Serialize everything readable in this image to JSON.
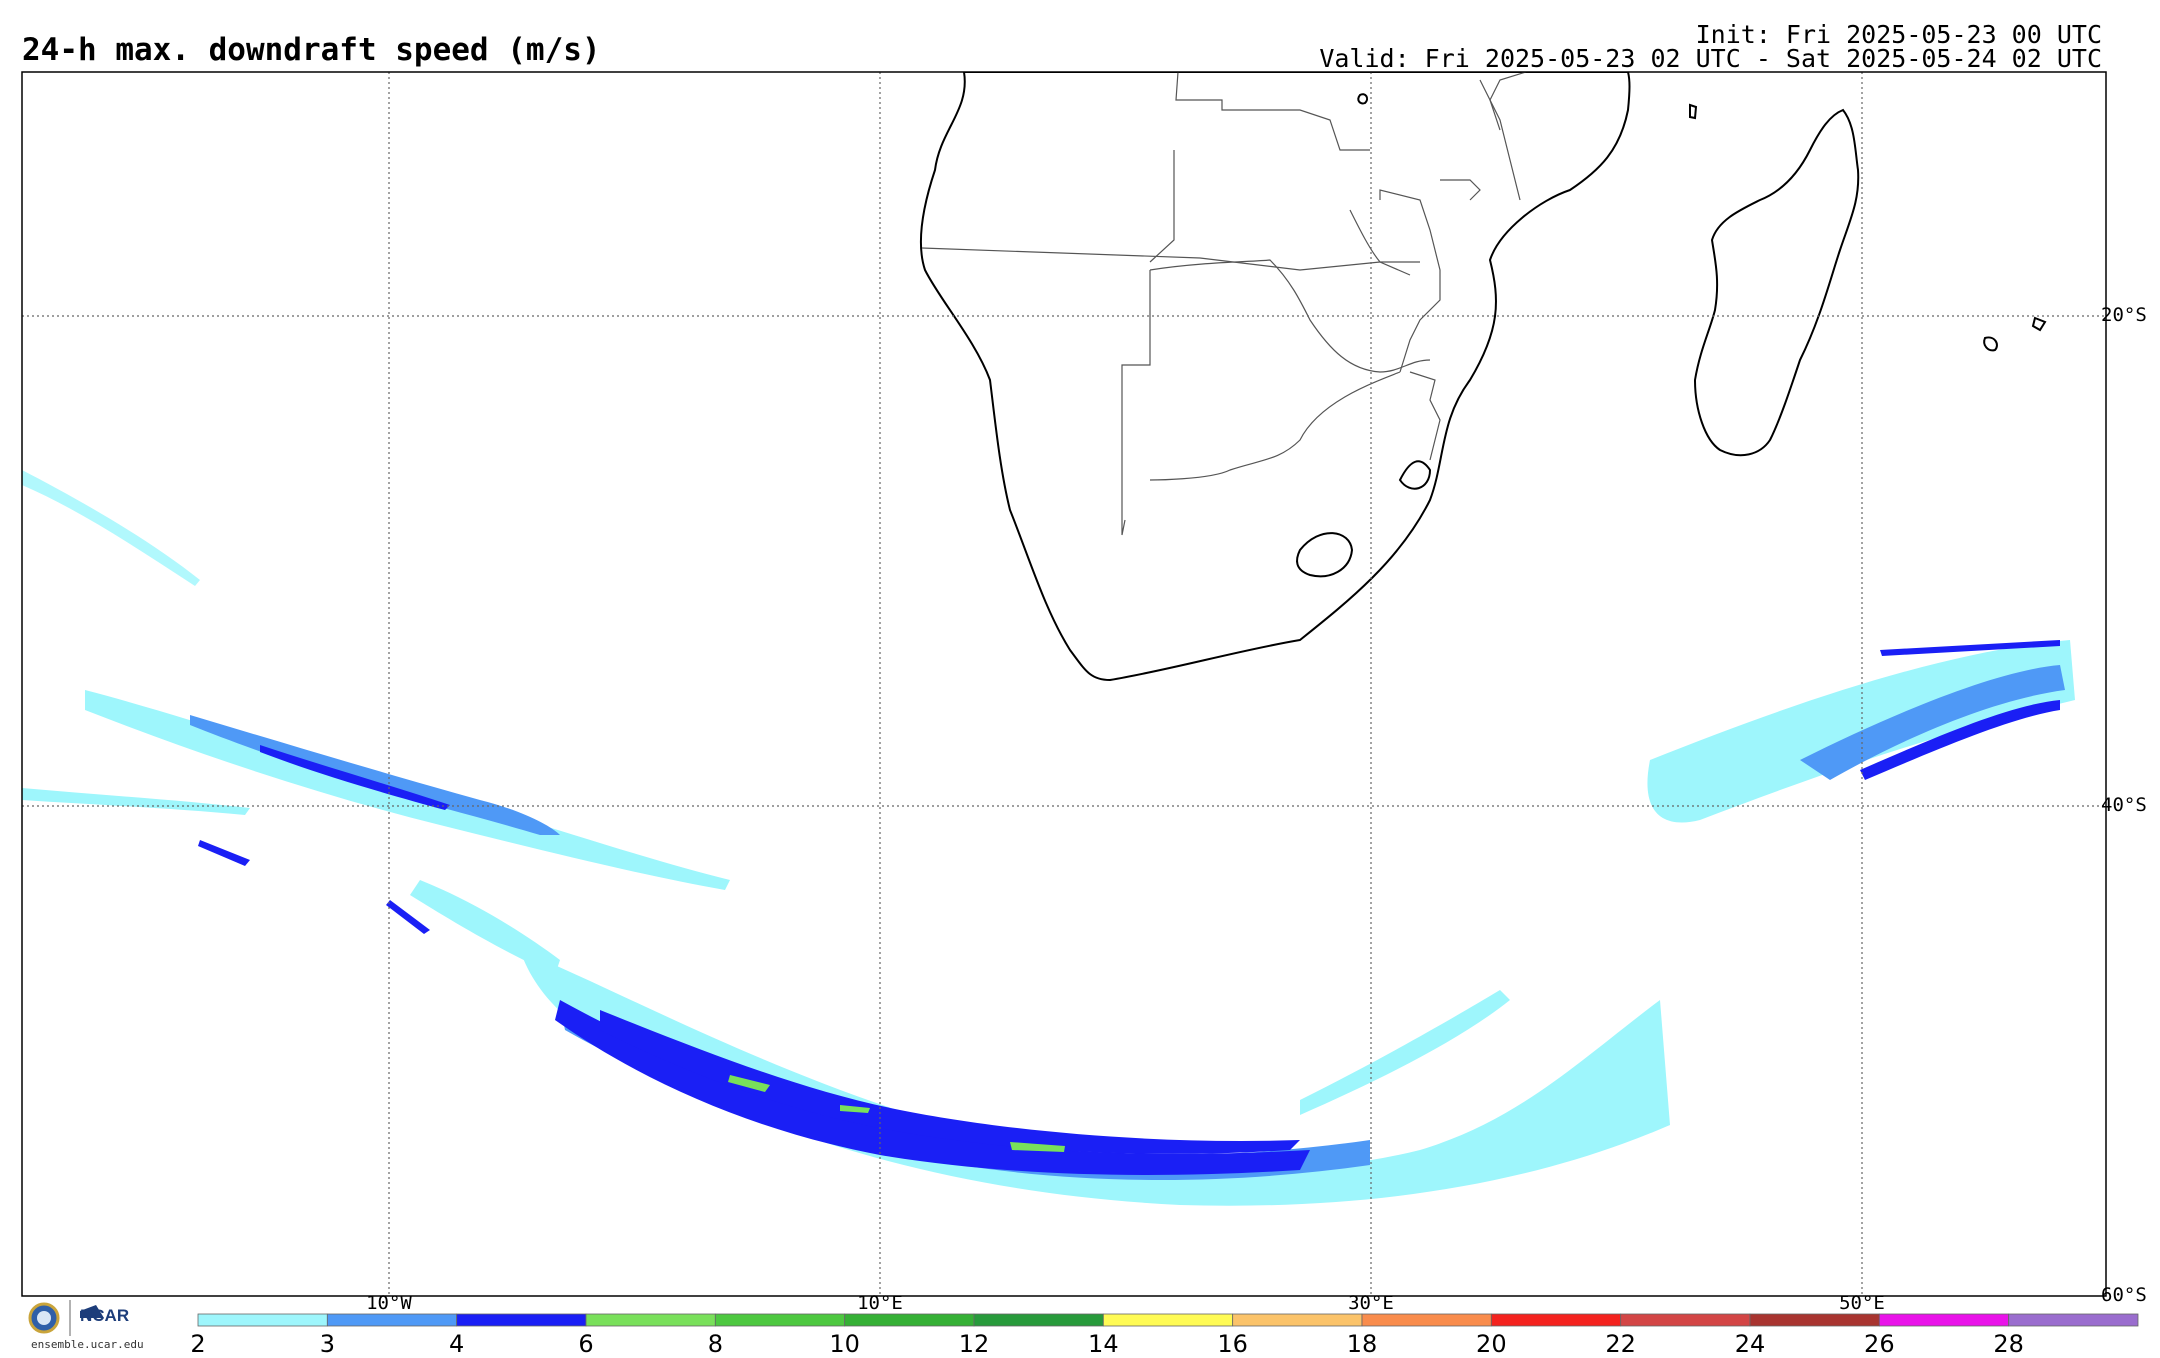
{
  "header": {
    "title": "24-h max. downdraft speed (m/s)",
    "init": "Init: Fri 2025-05-23 00 UTC",
    "valid": "Valid: Fri 2025-05-23 02 UTC - Sat 2025-05-24 02 UTC"
  },
  "map": {
    "latitude_labels": [
      "20°S",
      "40°S",
      "60°S"
    ],
    "longitude_labels": [
      "10°W",
      "10°E",
      "30°E",
      "50°E"
    ],
    "gridlines": true,
    "land_color": "#ffffff",
    "border_color": "#555555",
    "coast_color": "#000000"
  },
  "colorbar": {
    "ticks": [
      "2",
      "3",
      "4",
      "6",
      "8",
      "10",
      "12",
      "14",
      "16",
      "18",
      "20",
      "22",
      "24",
      "26",
      "28"
    ],
    "colors": [
      "#9ef6fc",
      "#4f99f6",
      "#1a1ff5",
      "#79e05a",
      "#4dc840",
      "#35b035",
      "#279a3b",
      "#fffb55",
      "#fbc36a",
      "#f98c4c",
      "#f4221e",
      "#d34545",
      "#a8342f",
      "#e913e9",
      "#9a6dce"
    ]
  },
  "logos": {
    "nsf": "NSF",
    "ncar": "NCAR",
    "url": "ensemble.ucar.edu"
  }
}
